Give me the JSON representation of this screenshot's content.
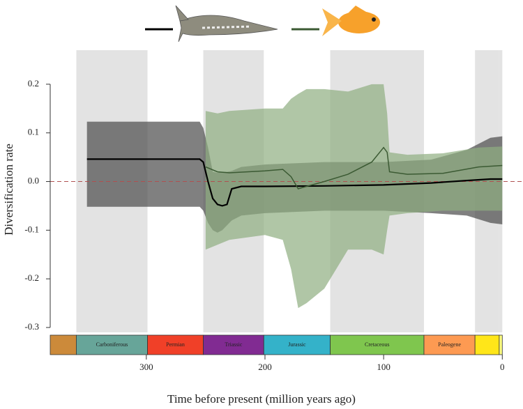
{
  "chart_data": {
    "type": "line-band",
    "x_label": "Time before present (million years ago)",
    "y_label": "Diversification rate",
    "xlim": [
      381,
      -1
    ],
    "ylim": [
      -0.31,
      0.27
    ],
    "xticks": [
      300,
      200,
      100,
      0
    ],
    "yticks": [
      0.2,
      0.1,
      {
        "value": 0,
        "label": "0.0"
      },
      -0.1,
      -0.2,
      -0.3
    ],
    "reference_line": {
      "value": 0,
      "color": "#b05050"
    },
    "band_opacity": 0.7,
    "periods": [
      {
        "name": null,
        "start": 381,
        "end": 359,
        "color": "#cc8a3a",
        "shaded": false
      },
      {
        "name": "Carboniferous",
        "start": 359,
        "end": 299,
        "color": "#67a599",
        "shaded": true
      },
      {
        "name": "Permian",
        "start": 299,
        "end": 252,
        "color": "#f04028",
        "shaded": false
      },
      {
        "name": "Triassic",
        "start": 252,
        "end": 201,
        "color": "#812b92",
        "shaded": true
      },
      {
        "name": "Jurassic",
        "start": 201,
        "end": 145,
        "color": "#34b2c9",
        "shaded": false
      },
      {
        "name": "Cretaceous",
        "start": 145,
        "end": 66,
        "color": "#7fc64e",
        "shaded": true
      },
      {
        "name": "Paleogene",
        "start": 66,
        "end": 23,
        "color": "#fd9a52",
        "shaded": false
      },
      {
        "name": null,
        "start": 23,
        "end": 2.6,
        "color": "#ffe619",
        "shaded": true
      },
      {
        "name": null,
        "start": 2.6,
        "end": 0,
        "color": "#f9f97f",
        "shaded": true
      }
    ],
    "series": [
      {
        "color": "#000000",
        "band_color": "#4a4a4a",
        "x": [
          350,
          300,
          255,
          252,
          248,
          244,
          240,
          236,
          232,
          228,
          220,
          200,
          150,
          100,
          60,
          30,
          10,
          0
        ],
        "values": [
          0.046,
          0.046,
          0.046,
          0.04,
          0.0,
          -0.035,
          -0.047,
          -0.05,
          -0.047,
          -0.015,
          -0.01,
          -0.01,
          -0.009,
          -0.007,
          -0.003,
          0.002,
          0.005,
          0.005
        ],
        "upper": [
          0.123,
          0.123,
          0.123,
          0.11,
          0.07,
          0.02,
          0.018,
          0.02,
          0.02,
          0.022,
          0.03,
          0.035,
          0.04,
          0.04,
          0.045,
          0.065,
          0.09,
          0.093
        ],
        "lower": [
          -0.052,
          -0.052,
          -0.052,
          -0.06,
          -0.085,
          -0.1,
          -0.105,
          -0.1,
          -0.09,
          -0.08,
          -0.07,
          -0.065,
          -0.06,
          -0.06,
          -0.065,
          -0.07,
          -0.085,
          -0.088
        ]
      },
      {
        "color": "#3b5a33",
        "band_color": "#8fae80",
        "x": [
          250,
          240,
          230,
          200,
          185,
          178,
          172,
          165,
          150,
          130,
          110,
          100,
          97,
          95,
          80,
          50,
          20,
          0
        ],
        "values": [
          0.03,
          0.02,
          0.018,
          0.022,
          0.025,
          0.01,
          -0.015,
          -0.01,
          0.0,
          0.015,
          0.04,
          0.07,
          0.06,
          0.02,
          0.015,
          0.017,
          0.03,
          0.033
        ],
        "upper": [
          0.145,
          0.14,
          0.145,
          0.15,
          0.15,
          0.17,
          0.18,
          0.19,
          0.19,
          0.185,
          0.2,
          0.2,
          0.14,
          0.06,
          0.055,
          0.058,
          0.07,
          0.072
        ],
        "lower": [
          -0.14,
          -0.13,
          -0.12,
          -0.11,
          -0.12,
          -0.18,
          -0.26,
          -0.25,
          -0.22,
          -0.14,
          -0.14,
          -0.15,
          -0.1,
          -0.07,
          -0.065,
          -0.06,
          -0.06,
          -0.06
        ]
      }
    ]
  }
}
